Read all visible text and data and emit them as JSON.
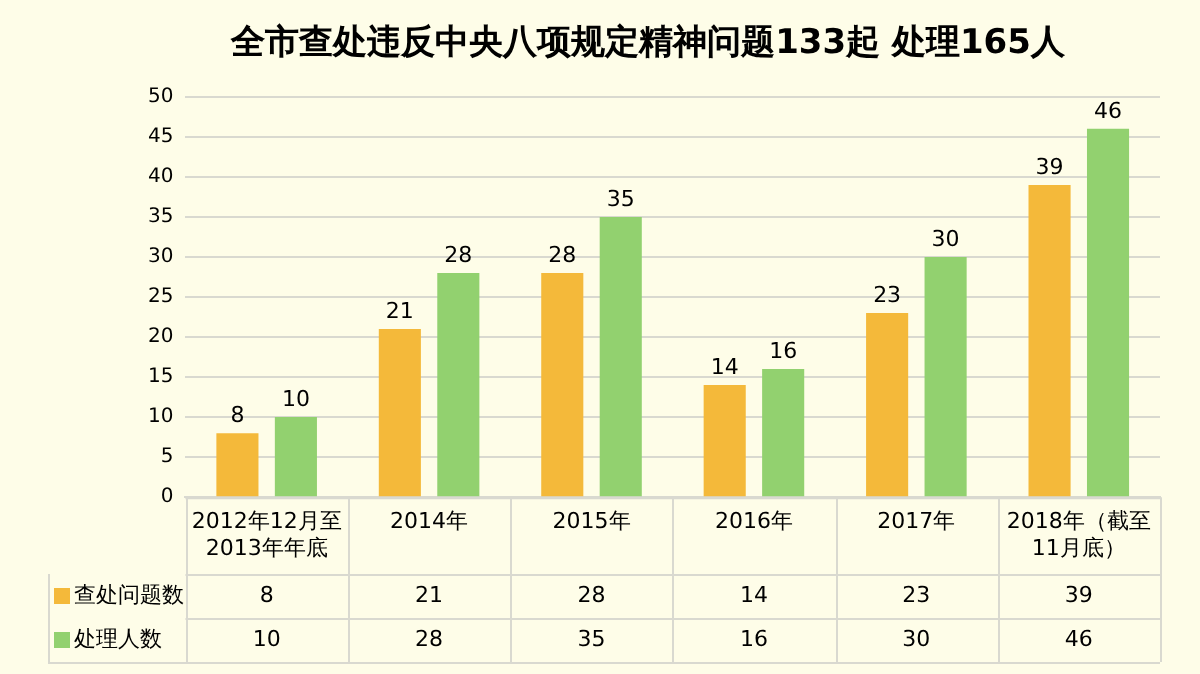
{
  "chart_data": {
    "type": "bar",
    "title": "全市查处违反中央八项规定精神问题133起 处理165人",
    "categories": [
      "2012年12月至2013年年底",
      "2014年",
      "2015年",
      "2016年",
      "2017年",
      "2018年（截至11月底）"
    ],
    "series": [
      {
        "name": "查处问题数",
        "color": "#f4b93a",
        "values": [
          8,
          21,
          28,
          14,
          23,
          39
        ],
        "value_labels": [
          "8",
          "21",
          "28",
          "14",
          "23",
          "39"
        ]
      },
      {
        "name": "处理人数",
        "color": "#92d16f",
        "values": [
          10,
          28,
          35,
          16,
          30,
          46
        ],
        "value_labels": [
          "10",
          "28",
          "35",
          "16",
          "30",
          "46"
        ]
      }
    ],
    "annotations": [
      "8",
      "21",
      "28",
      "14",
      "23",
      "39",
      "10",
      "28",
      "35",
      "16",
      "30",
      "46"
    ],
    "ylim": [
      0,
      50
    ],
    "yticks": [
      0,
      5,
      10,
      15,
      20,
      25,
      30,
      35,
      40,
      45,
      50
    ],
    "grid": "y",
    "legend": "bottom"
  }
}
